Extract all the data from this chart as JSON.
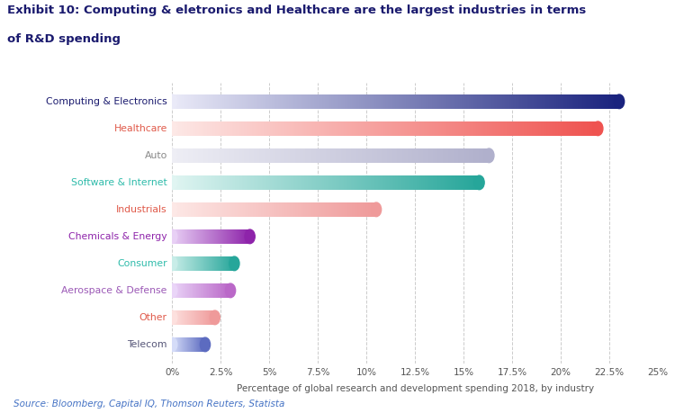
{
  "title_line1": "Exhibit 10: Computing & eletronics and Healthcare are the largest industries in terms",
  "title_line2": "of R&D spending",
  "title_color": "#1a1a6e",
  "source": "Source: Bloomberg, Capital IQ, Thomson Reuters, Statista",
  "source_color": "#4472c4",
  "xlabel": "Percentage of global research and development spending 2018, by industry",
  "categories": [
    "Computing & Electronics",
    "Healthcare",
    "Auto",
    "Software & Internet",
    "Industrials",
    "Chemicals & Energy",
    "Consumer",
    "Aerospace & Defense",
    "Other",
    "Telecom"
  ],
  "values": [
    23.0,
    21.9,
    16.3,
    15.8,
    10.5,
    4.0,
    3.2,
    3.0,
    2.2,
    1.7
  ],
  "label_colors": [
    "#1a1a6e",
    "#e05a4a",
    "#888888",
    "#2ebbaa",
    "#e05a4a",
    "#8e24aa",
    "#2ebbaa",
    "#9b59b6",
    "#e05a4a",
    "#555577"
  ],
  "bar_start_colors": [
    "#eaeaf8",
    "#fde8e6",
    "#eeeef5",
    "#e0f5f2",
    "#fde8e6",
    "#e8d0f5",
    "#c8ede8",
    "#ead5f8",
    "#fde0de",
    "#d5dcf8"
  ],
  "bar_end_colors": [
    "#1a237e",
    "#ef5350",
    "#b0b0cc",
    "#26a69a",
    "#ef9a9a",
    "#8e24aa",
    "#26a69a",
    "#ba68c8",
    "#ef9a9a",
    "#5c6bc0"
  ],
  "xlim": [
    0,
    25
  ],
  "xticks": [
    0,
    2.5,
    5,
    7.5,
    10,
    12.5,
    15,
    17.5,
    20,
    22.5,
    25
  ],
  "xtick_labels": [
    "0%",
    "2.5%",
    "5%",
    "7.5%",
    "10%",
    "12.5%",
    "15%",
    "17.5%",
    "20%",
    "22.5%",
    "25%"
  ],
  "background_color": "#ffffff",
  "grid_color": "#cccccc",
  "bar_height": 0.52
}
